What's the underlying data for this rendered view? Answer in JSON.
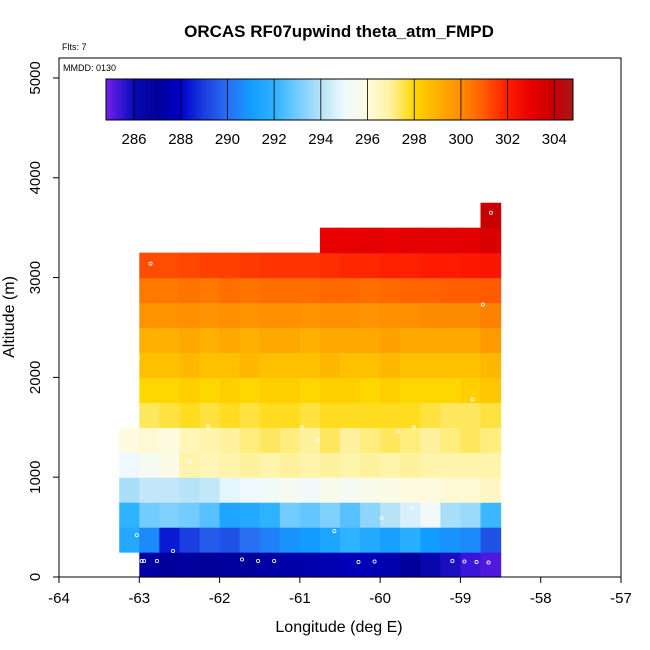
{
  "chart_data": {
    "type": "heatmap",
    "title": "ORCAS RF07upwind theta_atm_FMPD",
    "xlabel": "Longitude (deg E)",
    "ylabel": "Altitude (m)",
    "flts_label": "Flts: 7",
    "mmdd_label": "MMDD: 0130",
    "xlim": [
      -64,
      -57
    ],
    "ylim": [
      0,
      5200
    ],
    "x_ticks": [
      -64,
      -63,
      -62,
      -61,
      -60,
      -59,
      -58,
      -57
    ],
    "y_ticks": [
      0,
      1000,
      2000,
      3000,
      4000,
      5000
    ],
    "colorbar": {
      "min": 284.8,
      "max": 304.8,
      "ticks": [
        286,
        288,
        290,
        292,
        294,
        296,
        298,
        300,
        302,
        304
      ],
      "stops": [
        [
          284.8,
          "#7a1fe6"
        ],
        [
          285.4,
          "#3a16d8"
        ],
        [
          286.0,
          "#0a0ab4"
        ],
        [
          287.0,
          "#00009a"
        ],
        [
          288.0,
          "#0000c8"
        ],
        [
          289.0,
          "#1a3ee0"
        ],
        [
          290.0,
          "#2a6ef2"
        ],
        [
          291.0,
          "#139cff"
        ],
        [
          292.0,
          "#2db2ff"
        ],
        [
          293.0,
          "#73cbff"
        ],
        [
          294.0,
          "#b6e3f6"
        ],
        [
          295.0,
          "#eef9ff"
        ],
        [
          296.0,
          "#fffbe0"
        ],
        [
          297.0,
          "#fff29e"
        ],
        [
          298.0,
          "#ffd700"
        ],
        [
          299.0,
          "#ffb000"
        ],
        [
          300.0,
          "#ff8c00"
        ],
        [
          301.0,
          "#ff5a00"
        ],
        [
          302.0,
          "#ff1a00"
        ],
        [
          303.0,
          "#e80000"
        ],
        [
          304.0,
          "#c80000"
        ],
        [
          304.8,
          "#a81818"
        ]
      ]
    },
    "cell_width_deg": 0.25,
    "cell_height_m": 250,
    "rows": [
      {
        "alt": 0,
        "x0": -63.0,
        "x1": -58.5,
        "values": [
          287.2,
          287.0,
          286.9,
          287.0,
          287.1,
          287.0,
          287.2,
          287.3,
          287.4,
          287.5,
          287.6,
          287.6,
          287.4,
          287.0,
          286.3,
          285.8,
          285.4,
          285.2
        ]
      },
      {
        "alt": 250,
        "x0": -63.25,
        "x1": -58.5,
        "values": [
          291.6,
          290.6,
          288.4,
          289.0,
          289.6,
          289.4,
          290.0,
          290.4,
          290.8,
          291.0,
          291.4,
          292.0,
          291.6,
          291.2,
          291.8,
          291.0,
          290.8,
          290.6,
          289.4
        ]
      },
      {
        "alt": 500,
        "x0": -63.25,
        "x1": -58.5,
        "values": [
          292.0,
          293.0,
          293.2,
          293.0,
          292.6,
          291.4,
          291.6,
          292.0,
          293.0,
          292.8,
          293.2,
          292.6,
          293.4,
          294.0,
          294.6,
          295.2,
          293.8,
          293.6,
          292.2
        ]
      },
      {
        "alt": 750,
        "x0": -63.25,
        "x1": -58.5,
        "values": [
          293.8,
          294.2,
          294.2,
          294.0,
          294.2,
          294.8,
          295.0,
          295.2,
          295.4,
          295.2,
          295.6,
          295.4,
          295.6,
          295.8,
          296.0,
          296.0,
          296.2,
          296.2,
          296.4
        ]
      },
      {
        "alt": 1000,
        "x0": -63.25,
        "x1": -58.5,
        "values": [
          295.0,
          295.4,
          295.8,
          296.8,
          296.6,
          296.8,
          297.0,
          296.8,
          297.0,
          296.8,
          297.0,
          296.8,
          297.0,
          296.8,
          297.0,
          296.8,
          296.8,
          296.8,
          296.8
        ]
      },
      {
        "alt": 1250,
        "x0": -63.25,
        "x1": -58.5,
        "values": [
          296.0,
          296.2,
          296.0,
          296.6,
          296.8,
          297.0,
          297.2,
          297.4,
          297.2,
          297.0,
          297.4,
          297.0,
          297.2,
          297.4,
          297.2,
          297.0,
          297.2,
          297.4,
          297.2
        ]
      },
      {
        "alt": 1500,
        "x0": -63.0,
        "x1": -58.5,
        "values": [
          297.4,
          297.6,
          297.8,
          297.6,
          297.8,
          297.6,
          297.8,
          297.8,
          297.6,
          297.8,
          297.8,
          297.8,
          297.8,
          297.8,
          297.6,
          297.4,
          297.4,
          297.6
        ]
      },
      {
        "alt": 1750,
        "x0": -63.0,
        "x1": -58.5,
        "values": [
          298.0,
          298.0,
          298.2,
          298.0,
          298.2,
          298.0,
          298.2,
          298.2,
          298.0,
          298.2,
          298.2,
          298.0,
          298.2,
          298.0,
          298.0,
          298.0,
          298.2,
          298.4
        ]
      },
      {
        "alt": 2000,
        "x0": -63.0,
        "x1": -58.5,
        "values": [
          298.6,
          298.6,
          298.8,
          298.6,
          298.6,
          298.8,
          298.6,
          298.6,
          298.6,
          298.8,
          298.6,
          298.6,
          298.8,
          298.6,
          298.6,
          298.6,
          298.6,
          298.8
        ]
      },
      {
        "alt": 2250,
        "x0": -63.0,
        "x1": -58.5,
        "values": [
          299.0,
          299.0,
          299.2,
          299.0,
          299.2,
          299.0,
          299.2,
          299.2,
          299.0,
          299.2,
          299.2,
          299.2,
          299.4,
          299.2,
          299.2,
          299.2,
          299.2,
          299.6
        ]
      },
      {
        "alt": 2500,
        "x0": -63.0,
        "x1": -58.5,
        "values": [
          299.8,
          299.8,
          299.9,
          299.8,
          299.9,
          299.8,
          299.9,
          299.9,
          299.8,
          299.9,
          299.9,
          299.8,
          299.9,
          299.9,
          300.0,
          300.0,
          300.0,
          300.2
        ]
      },
      {
        "alt": 2750,
        "x0": -63.0,
        "x1": -58.5,
        "values": [
          300.4,
          300.4,
          300.5,
          300.4,
          300.6,
          300.5,
          300.6,
          300.6,
          300.6,
          300.7,
          300.7,
          300.6,
          300.7,
          300.8,
          300.8,
          300.9,
          300.9,
          301.0
        ]
      },
      {
        "alt": 3000,
        "x0": -63.0,
        "x1": -58.5,
        "values": [
          301.2,
          301.2,
          301.3,
          301.4,
          301.4,
          301.5,
          301.6,
          301.6,
          301.6,
          301.7,
          301.8,
          301.8,
          301.9,
          301.9,
          302.0,
          302.0,
          302.1,
          302.2
        ]
      },
      {
        "alt": 3250,
        "x0": -60.75,
        "x1": -58.5,
        "values": [
          303.0,
          303.0,
          303.1,
          303.0,
          303.1,
          303.2,
          303.2,
          303.2,
          303.4
        ]
      },
      {
        "alt": 3500,
        "x0": -58.75,
        "x1": -58.5,
        "values": [
          304.0
        ]
      }
    ],
    "observation_points": [
      {
        "x": -62.97,
        "y": 160
      },
      {
        "x": -62.94,
        "y": 160
      },
      {
        "x": -62.78,
        "y": 160
      },
      {
        "x": -61.72,
        "y": 175
      },
      {
        "x": -61.52,
        "y": 160
      },
      {
        "x": -61.32,
        "y": 160
      },
      {
        "x": -60.27,
        "y": 150
      },
      {
        "x": -60.07,
        "y": 155
      },
      {
        "x": -59.1,
        "y": 160
      },
      {
        "x": -58.95,
        "y": 155
      },
      {
        "x": -58.8,
        "y": 150
      },
      {
        "x": -58.65,
        "y": 145
      },
      {
        "x": -63.03,
        "y": 420
      },
      {
        "x": -62.58,
        "y": 260
      },
      {
        "x": -60.57,
        "y": 460
      },
      {
        "x": -59.98,
        "y": 590
      },
      {
        "x": -59.6,
        "y": 690
      },
      {
        "x": -62.37,
        "y": 1150
      },
      {
        "x": -62.14,
        "y": 1510
      },
      {
        "x": -60.97,
        "y": 1500
      },
      {
        "x": -60.77,
        "y": 1370
      },
      {
        "x": -59.78,
        "y": 1460
      },
      {
        "x": -59.58,
        "y": 1500
      },
      {
        "x": -58.85,
        "y": 1780
      },
      {
        "x": -63.02,
        "y": 2200
      },
      {
        "x": -62.86,
        "y": 3140
      },
      {
        "x": -58.72,
        "y": 2730
      },
      {
        "x": -58.62,
        "y": 3650
      }
    ]
  }
}
